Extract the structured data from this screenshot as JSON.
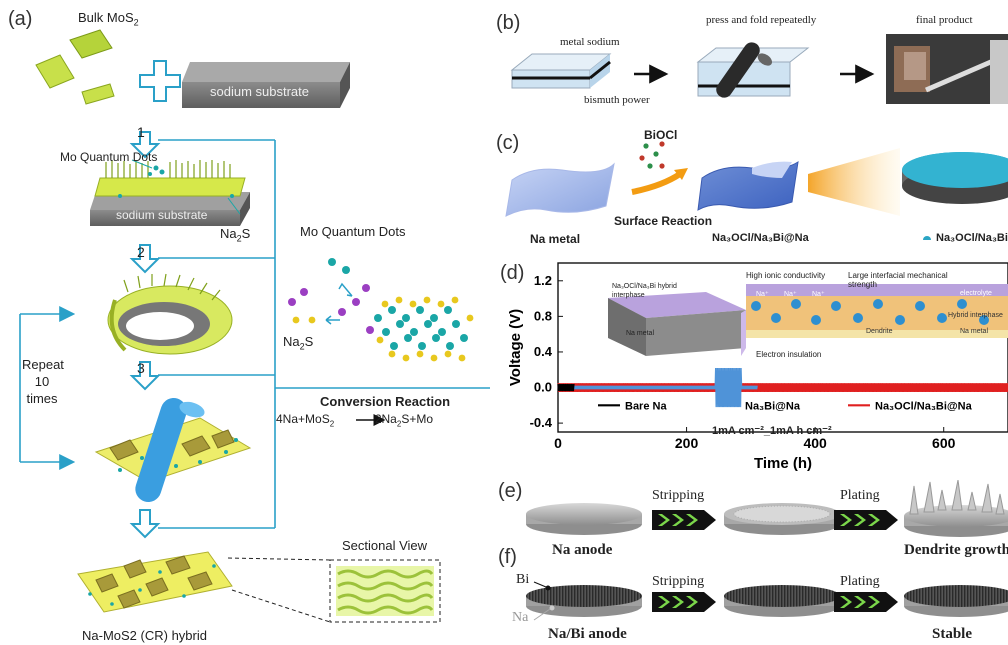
{
  "panel_a": {
    "letter": "(a)",
    "bulk": {
      "base": "Bulk MoS",
      "sub": "2"
    },
    "substrate_label": "sodium substrate",
    "substrate_label2": "sodium substrate",
    "steps": [
      "1",
      "2",
      "3"
    ],
    "mo_qd_label": "Mo Quantum Dots",
    "na2s": {
      "base": "Na",
      "sub": "2",
      "tail": "S"
    },
    "mo_qd_label2": "Mo Quantum Dots",
    "na2s_2": {
      "base": "Na",
      "sub": "2",
      "tail": "S"
    },
    "repeat": [
      "Repeat",
      "10",
      "times"
    ],
    "conversion_title": "Conversion Reaction",
    "equation": {
      "left": "4Na+MoS",
      "left_sub": "2",
      "right": "2Na",
      "right_sub": "2",
      "right_tail": "S+Mo"
    },
    "sectional_view": "Sectional View",
    "hybrid_label": "Na-MoS2 (CR) hybrid"
  },
  "panel_b": {
    "letter": "(b)",
    "metal_sodium": "metal sodium",
    "bismuth_power": "bismuth power",
    "press_fold": "press and fold repeatedly",
    "final_product": "final product"
  },
  "panel_c": {
    "letter": "(c)",
    "biocl": "BiOCl",
    "surface_reaction": "Surface Reaction",
    "na_metal": "Na metal",
    "middle_label": "Na₃OCl/Na₃Bi@Na",
    "legend": "Na₃OCl/Na₃Bi"
  },
  "panel_d": {
    "letter": "(d)",
    "inset_labels": {
      "hybrid": "Na₃OCl/Na₃Bi hybrid interphase",
      "na_metal": "Na metal",
      "high_ionic": "High ionic conductivity",
      "large_interfacial": "Large interfacial mechanical strength",
      "electrolyte": "electrolyte",
      "hybrid_interphase": "Hybrid interphase",
      "dendrite": "Dendrite",
      "na_metal2": "Na metal",
      "electron_insulation": "Electron insulation",
      "na_plus": "Na⁺"
    },
    "condition": "1mA cm⁻²_1mA h cm⁻²"
  },
  "chart_data": {
    "type": "line",
    "xlabel": "Time (h)",
    "ylabel": "Voltage (V)",
    "xlim": [
      0,
      700
    ],
    "ylim": [
      -0.5,
      1.4
    ],
    "xticks": [
      "0",
      "200",
      "400",
      "600"
    ],
    "yticks": [
      "-0.4",
      "0.0",
      "0.4",
      "0.8",
      "1.2"
    ],
    "series": [
      {
        "name": "Bare Na",
        "color": "#000000",
        "x_range": [
          0,
          25
        ],
        "amplitude": 0.04
      },
      {
        "name": "Na₃Bi@Na",
        "color": "#4f93d8",
        "x_range": [
          0,
          310
        ],
        "amplitude": 0.02,
        "spike": {
          "x_range": [
            245,
            285
          ],
          "amplitude": 0.22
        }
      },
      {
        "name": "Na₃OCl/Na₃Bi@Na",
        "color": "#e02020",
        "x_range": [
          0,
          700
        ],
        "amplitude": 0.05
      }
    ]
  },
  "panel_e": {
    "letter": "(e)",
    "stripping": "Stripping",
    "plating": "Plating",
    "anode": "Na anode",
    "result": "Dendrite growth"
  },
  "panel_f": {
    "letter": "(f)",
    "bi": "Bi",
    "na": "Na",
    "stripping": "Stripping",
    "plating": "Plating",
    "anode": "Na/Bi anode",
    "result": "Stable"
  },
  "colors": {
    "accent": "#2aa0c8",
    "sodium": "#777777",
    "mos2": "#c6de3c"
  }
}
